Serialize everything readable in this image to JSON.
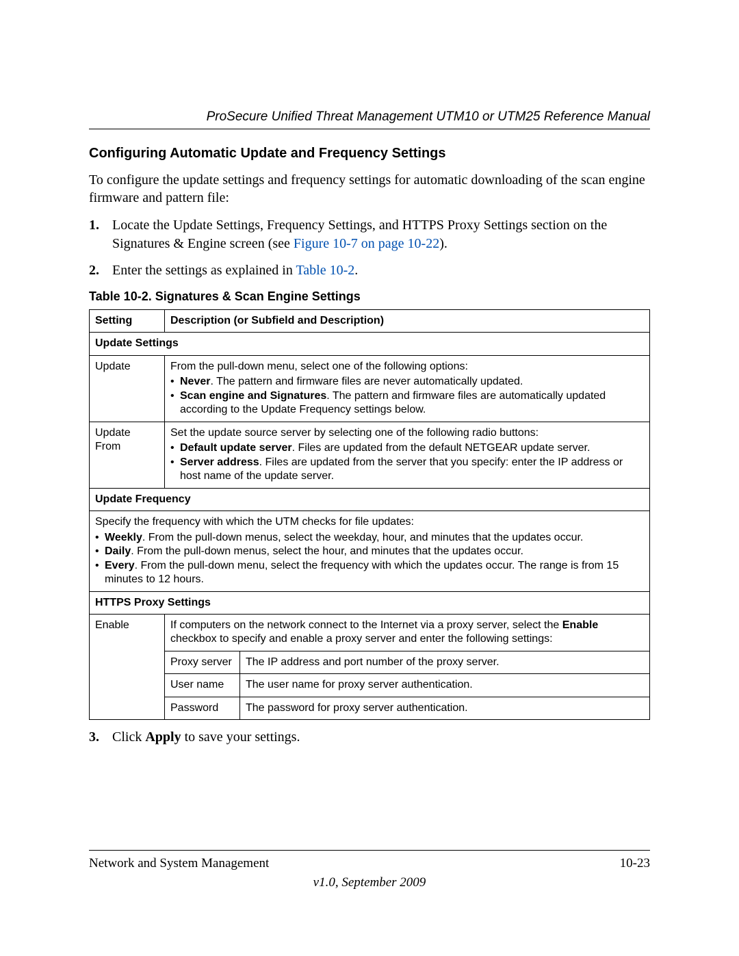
{
  "header": {
    "running_title": "ProSecure Unified Threat Management UTM10 or UTM25 Reference Manual"
  },
  "section": {
    "title": "Configuring Automatic Update and Frequency Settings",
    "intro": "To configure the update settings and frequency settings for automatic downloading of the scan engine firmware and pattern file:"
  },
  "steps": {
    "s1_a": "Locate the Update Settings, Frequency Settings, and HTTPS Proxy Settings section on the Signatures & Engine screen (see ",
    "s1_link": "Figure 10-7 on page 10-22",
    "s1_b": ").",
    "s2_a": "Enter the settings as explained in ",
    "s2_link": "Table 10-2",
    "s2_b": "."
  },
  "table": {
    "caption": "Table 10-2. Signatures & Scan Engine Settings",
    "header_setting": "Setting",
    "header_desc": "Description (or Subfield and Description)",
    "sec_update_settings": "Update Settings",
    "row_update": {
      "setting": "Update",
      "lead": "From the pull-down menu, select one of the following options:",
      "b1_bold": "Never",
      "b1_rest": ". The pattern and firmware files are never automatically updated.",
      "b2_bold": "Scan engine and Signatures",
      "b2_rest": ". The pattern and firmware files are automatically updated according to the Update Frequency settings below."
    },
    "row_update_from": {
      "setting": "Update From",
      "lead": "Set the update source server by selecting one of the following radio buttons:",
      "b1_bold": "Default update server",
      "b1_rest": ". Files are updated from the default NETGEAR update server.",
      "b2_bold": "Server address",
      "b2_rest": ". Files are updated from the server that you specify: enter the IP address or host name of the update server."
    },
    "sec_update_freq": "Update Frequency",
    "freq": {
      "lead": "Specify the frequency with which the UTM checks for file updates:",
      "b1_bold": "Weekly",
      "b1_rest": ". From the pull-down menus, select the weekday, hour, and minutes that the updates occur.",
      "b2_bold": "Daily",
      "b2_rest": ". From the pull-down menus, select the hour, and minutes that the updates occur.",
      "b3_bold": "Every",
      "b3_rest": ". From the pull-down menu, select the frequency with which the updates occur. The range is from 15 minutes to 12 hours."
    },
    "sec_https": "HTTPS Proxy Settings",
    "enable": {
      "setting": "Enable",
      "lead_a": "If computers on the network connect to the Internet via a proxy server, select the ",
      "lead_bold": "Enable",
      "lead_b": " checkbox to specify and enable a proxy server and enter the following settings:",
      "sub1_name": "Proxy server",
      "sub1_desc": "The IP address and port number of the proxy server.",
      "sub2_name": "User name",
      "sub2_desc": "The user name for proxy server authentication.",
      "sub3_name": "Password",
      "sub3_desc": "The password for proxy server authentication."
    }
  },
  "step3": {
    "a": "Click ",
    "bold": "Apply",
    "b": " to save your settings."
  },
  "footer": {
    "left": "Network and System Management",
    "right": "10-23",
    "version": "v1.0, September 2009"
  }
}
